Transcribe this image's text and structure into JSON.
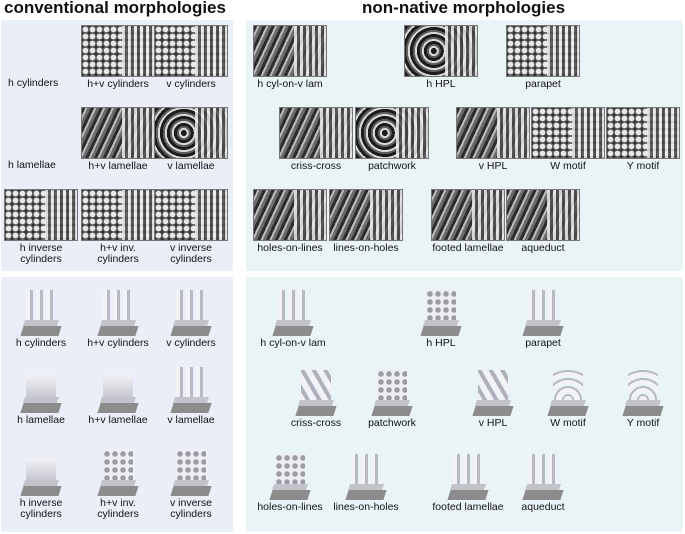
{
  "headers": {
    "conventional": "conventional morphologies",
    "non_native": "non-native morphologies"
  },
  "conventional_rows": {
    "h_cylinders": "h cylinders",
    "h_lamellae": "h lamellae"
  },
  "conventional_sem": [
    "h+v cylinders",
    "v cylinders",
    "h+v lamellae",
    "v lamellae",
    "h inverse cylinders",
    "h+v inv. cylinders",
    "v inverse cylinders"
  ],
  "non_native_sem": [
    "h cyl-on-v lam",
    "h HPL",
    "parapet",
    "criss-cross",
    "patchwork",
    "v HPL",
    "W motif",
    "Y motif",
    "holes-on-lines",
    "lines-on-holes",
    "footed lamellae",
    "aqueduct"
  ],
  "conventional_models": [
    "h cylinders",
    "h+v cylinders",
    "v cylinders",
    "h lamellae",
    "h+v lamellae",
    "v lamellae",
    "h inverse cylinders",
    "h+v inv. cylinders",
    "v inverse cylinders"
  ],
  "non_native_models": [
    "h cyl-on-v lam",
    "h HPL",
    "parapet",
    "criss-cross",
    "patchwork",
    "v HPL",
    "W motif",
    "Y motif",
    "holes-on-lines",
    "lines-on-holes",
    "footed lamellae",
    "aqueduct"
  ]
}
